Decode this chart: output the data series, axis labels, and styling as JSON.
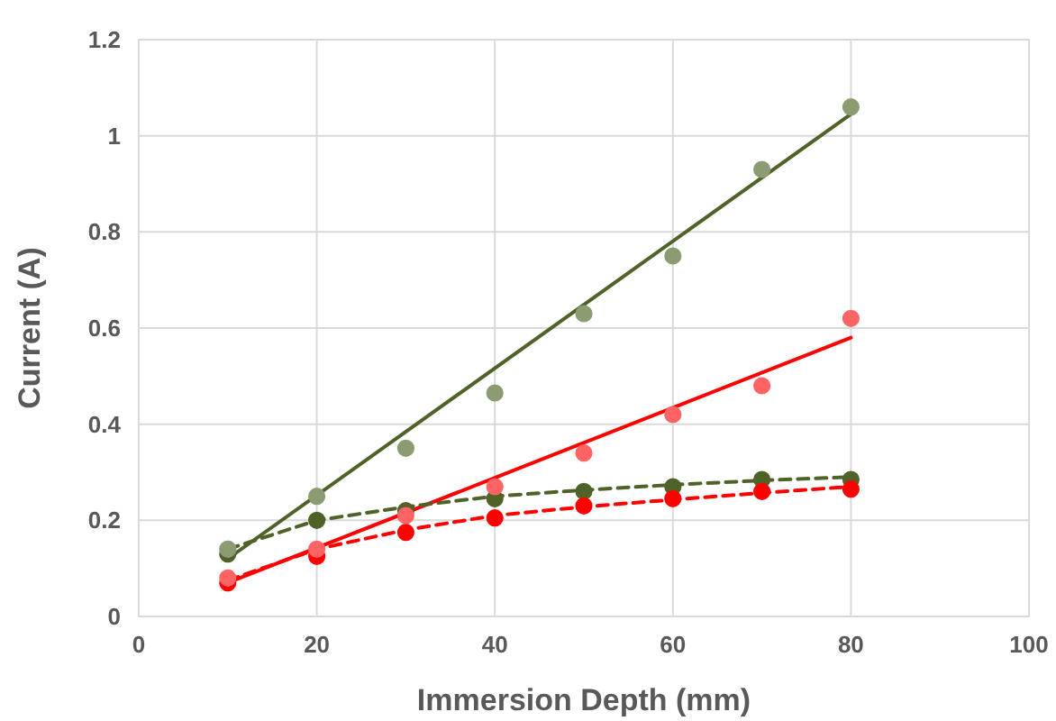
{
  "chart_data": {
    "type": "scatter",
    "xlabel": "Immersion Depth (mm)",
    "ylabel": "Current (A)",
    "xlim": [
      0,
      100
    ],
    "xticks": [
      0,
      20,
      40,
      60,
      80,
      100
    ],
    "ylim": [
      0,
      1.2
    ],
    "yticks": [
      0,
      0.2,
      0.4,
      0.6,
      0.8,
      1,
      1.2
    ],
    "grid": true,
    "x": [
      10,
      20,
      30,
      40,
      50,
      60,
      70,
      80
    ],
    "series": [
      {
        "type": "line",
        "color": "#4f6228",
        "x": [
          10,
          80
        ],
        "values": [
          0.12,
          1.045
        ],
        "marker": "none",
        "line_style": "solid"
      },
      {
        "type": "line",
        "color": "#ff0000",
        "x": [
          10,
          80
        ],
        "values": [
          0.07,
          0.58
        ],
        "marker": "none",
        "line_style": "solid"
      },
      {
        "type": "line",
        "color": "#4f6228",
        "x": [
          10,
          20,
          30,
          40,
          50,
          60,
          70,
          80
        ],
        "values": [
          0.14,
          0.2,
          0.228,
          0.25,
          0.263,
          0.274,
          0.283,
          0.29
        ],
        "marker": "none",
        "line_style": "dashed"
      },
      {
        "type": "line",
        "color": "#ff0000",
        "x": [
          10,
          20,
          30,
          40,
          50,
          60,
          70,
          80
        ],
        "values": [
          0.075,
          0.14,
          0.18,
          0.21,
          0.228,
          0.243,
          0.257,
          0.27
        ],
        "marker": "none",
        "line_style": "dashed"
      },
      {
        "color": "#4f6228",
        "values": [
          0.13,
          0.2,
          0.22,
          0.245,
          0.26,
          0.27,
          0.285,
          0.285
        ],
        "marker": "circle"
      },
      {
        "color": "#ff0000",
        "values": [
          0.07,
          0.125,
          0.175,
          0.205,
          0.23,
          0.245,
          0.26,
          0.265
        ],
        "marker": "circle"
      },
      {
        "color": "#8c9c72",
        "values": [
          0.14,
          0.25,
          0.35,
          0.465,
          0.63,
          0.75,
          0.93,
          1.06
        ],
        "marker": "circle"
      },
      {
        "color": "#ff6464",
        "values": [
          0.08,
          0.14,
          0.21,
          0.27,
          0.34,
          0.42,
          0.48,
          0.62
        ],
        "marker": "circle"
      }
    ]
  }
}
